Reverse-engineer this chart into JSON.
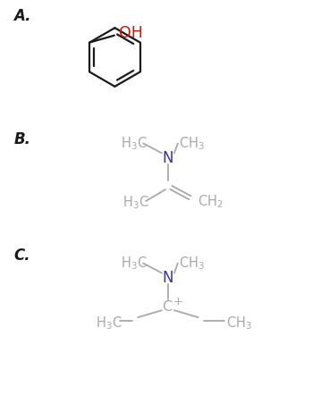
{
  "background_color": "#ffffff",
  "label_A": "A.",
  "label_B": "B.",
  "label_C": "C.",
  "gray_color": "#a8a8a8",
  "blue_color": "#3333aa",
  "red_color": "#cc1100",
  "black_color": "#1a1a1a",
  "text_fontsize": 10.5,
  "label_fontsize": 12,
  "figsize": [
    3.68,
    4.52
  ],
  "dpi": 100
}
